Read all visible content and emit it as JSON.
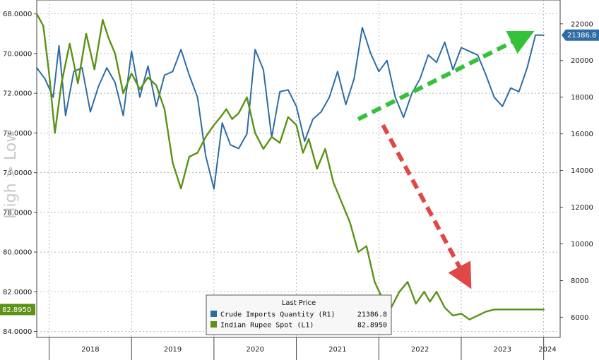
{
  "chart_data": {
    "type": "line",
    "y_left": {
      "ticks": [
        "68.0000",
        "70.0000",
        "72.0000",
        "74.0000",
        "76.0000",
        "78.0000",
        "80.0000",
        "82.0000",
        "84.0000"
      ],
      "range": [
        67.3,
        84.3
      ],
      "inverted": true,
      "label": "High > Low"
    },
    "y_right": {
      "ticks": [
        "6000",
        "8000",
        "10000",
        "12000",
        "14000",
        "16000",
        "18000",
        "20000",
        "22000"
      ],
      "range": [
        4900,
        23300
      ]
    },
    "x_years": [
      "2018",
      "2019",
      "2020",
      "2021",
      "2022",
      "2023",
      "2024"
    ],
    "x_range": [
      2017.85,
      2024.2
    ],
    "grid": true,
    "legend": {
      "title": "Last Price",
      "placement": "bottom-center",
      "entries": [
        {
          "label": "Crude Imports Quantity  (R1)",
          "value": "21386.8",
          "color": "#2e6da4"
        },
        {
          "label": "Indian Rupee Spot  (L1)",
          "value": "82.8950",
          "color": "#5c9216"
        }
      ]
    },
    "last_values": {
      "left": "82.8950",
      "right": "21386.8"
    },
    "series": [
      {
        "name": "Crude Imports Quantity",
        "axis": "right",
        "color": "#2e6da4",
        "x": [
          2017.85,
          2017.95,
          2018.05,
          2018.12,
          2018.2,
          2018.3,
          2018.4,
          2018.5,
          2018.6,
          2018.7,
          2018.8,
          2018.9,
          2019.0,
          2019.1,
          2019.2,
          2019.3,
          2019.4,
          2019.5,
          2019.6,
          2019.7,
          2019.8,
          2019.9,
          2020.0,
          2020.1,
          2020.2,
          2020.3,
          2020.4,
          2020.5,
          2020.6,
          2020.7,
          2020.8,
          2020.9,
          2021.0,
          2021.1,
          2021.2,
          2021.3,
          2021.4,
          2021.5,
          2021.6,
          2021.7,
          2021.8,
          2021.9,
          2022.0,
          2022.1,
          2022.2,
          2022.3,
          2022.4,
          2022.5,
          2022.6,
          2022.7,
          2022.8,
          2022.9,
          2023.0,
          2023.1,
          2023.2,
          2023.3,
          2023.4,
          2023.5,
          2023.6,
          2023.7,
          2023.8,
          2023.9,
          2024.0
        ],
        "values": [
          19600,
          19000,
          18000,
          20800,
          17000,
          19400,
          19600,
          17200,
          18600,
          19600,
          18800,
          17000,
          20500,
          18000,
          19700,
          17500,
          19200,
          19400,
          20600,
          19200,
          18000,
          14800,
          13000,
          16600,
          15400,
          15200,
          16000,
          20600,
          19500,
          15800,
          18300,
          18400,
          17500,
          15600,
          16800,
          17200,
          18000,
          19400,
          17600,
          19000,
          21800,
          20400,
          19400,
          20000,
          18000,
          16900,
          18200,
          19000,
          20300,
          19900,
          21000,
          19500,
          20700,
          20500,
          20300,
          19200,
          18000,
          17500,
          18500,
          18300,
          19600,
          21386.8,
          21386.8
        ]
      },
      {
        "name": "Indian Rupee Spot",
        "axis": "left",
        "color": "#5c9216",
        "x": [
          2017.85,
          2017.93,
          2018.0,
          2018.07,
          2018.15,
          2018.25,
          2018.35,
          2018.45,
          2018.55,
          2018.65,
          2018.72,
          2018.8,
          2018.9,
          2019.0,
          2019.1,
          2019.2,
          2019.3,
          2019.4,
          2019.5,
          2019.6,
          2019.7,
          2019.8,
          2019.9,
          2020.0,
          2020.08,
          2020.15,
          2020.22,
          2020.3,
          2020.4,
          2020.5,
          2020.6,
          2020.7,
          2020.8,
          2020.9,
          2021.0,
          2021.08,
          2021.15,
          2021.25,
          2021.35,
          2021.45,
          2021.55,
          2021.65,
          2021.75,
          2021.85,
          2021.95,
          2022.05,
          2022.15,
          2022.25,
          2022.35,
          2022.45,
          2022.55,
          2022.62,
          2022.7,
          2022.8,
          2022.9,
          2023.0,
          2023.1,
          2023.2,
          2023.3,
          2023.4,
          2023.5,
          2023.6,
          2023.7,
          2023.8,
          2023.9,
          2024.0
        ],
        "values": [
          68.0,
          68.6,
          71.0,
          74.0,
          71.5,
          69.5,
          71.5,
          69.0,
          70.8,
          68.3,
          69.2,
          70.0,
          72.0,
          71.0,
          71.8,
          71.2,
          71.6,
          72.8,
          75.5,
          76.8,
          75.2,
          75.0,
          74.2,
          73.6,
          73.2,
          72.8,
          73.3,
          73.0,
          72.2,
          74.0,
          74.8,
          74.2,
          74.5,
          73.2,
          73.6,
          75.0,
          74.3,
          75.8,
          74.8,
          76.5,
          77.5,
          78.5,
          80.0,
          79.7,
          81.5,
          82.4,
          82.8,
          82.0,
          81.5,
          82.6,
          82.0,
          82.5,
          82.0,
          82.8,
          83.2,
          83.1,
          83.4,
          83.2,
          83.0,
          82.9,
          82.89,
          82.89,
          82.89,
          82.89,
          82.89,
          82.895
        ]
      }
    ],
    "annotations": [
      {
        "type": "arrow",
        "color": "#35c23a",
        "style": "dashed",
        "from": [
          2021.75,
          16800
        ],
        "to": [
          2023.75,
          21300
        ],
        "axis": "right"
      },
      {
        "type": "arrow",
        "color": "#e04848",
        "style": "dashed",
        "from": [
          2022.05,
          73.6
        ],
        "to": [
          2023.05,
          81.3
        ],
        "axis": "left"
      }
    ]
  }
}
